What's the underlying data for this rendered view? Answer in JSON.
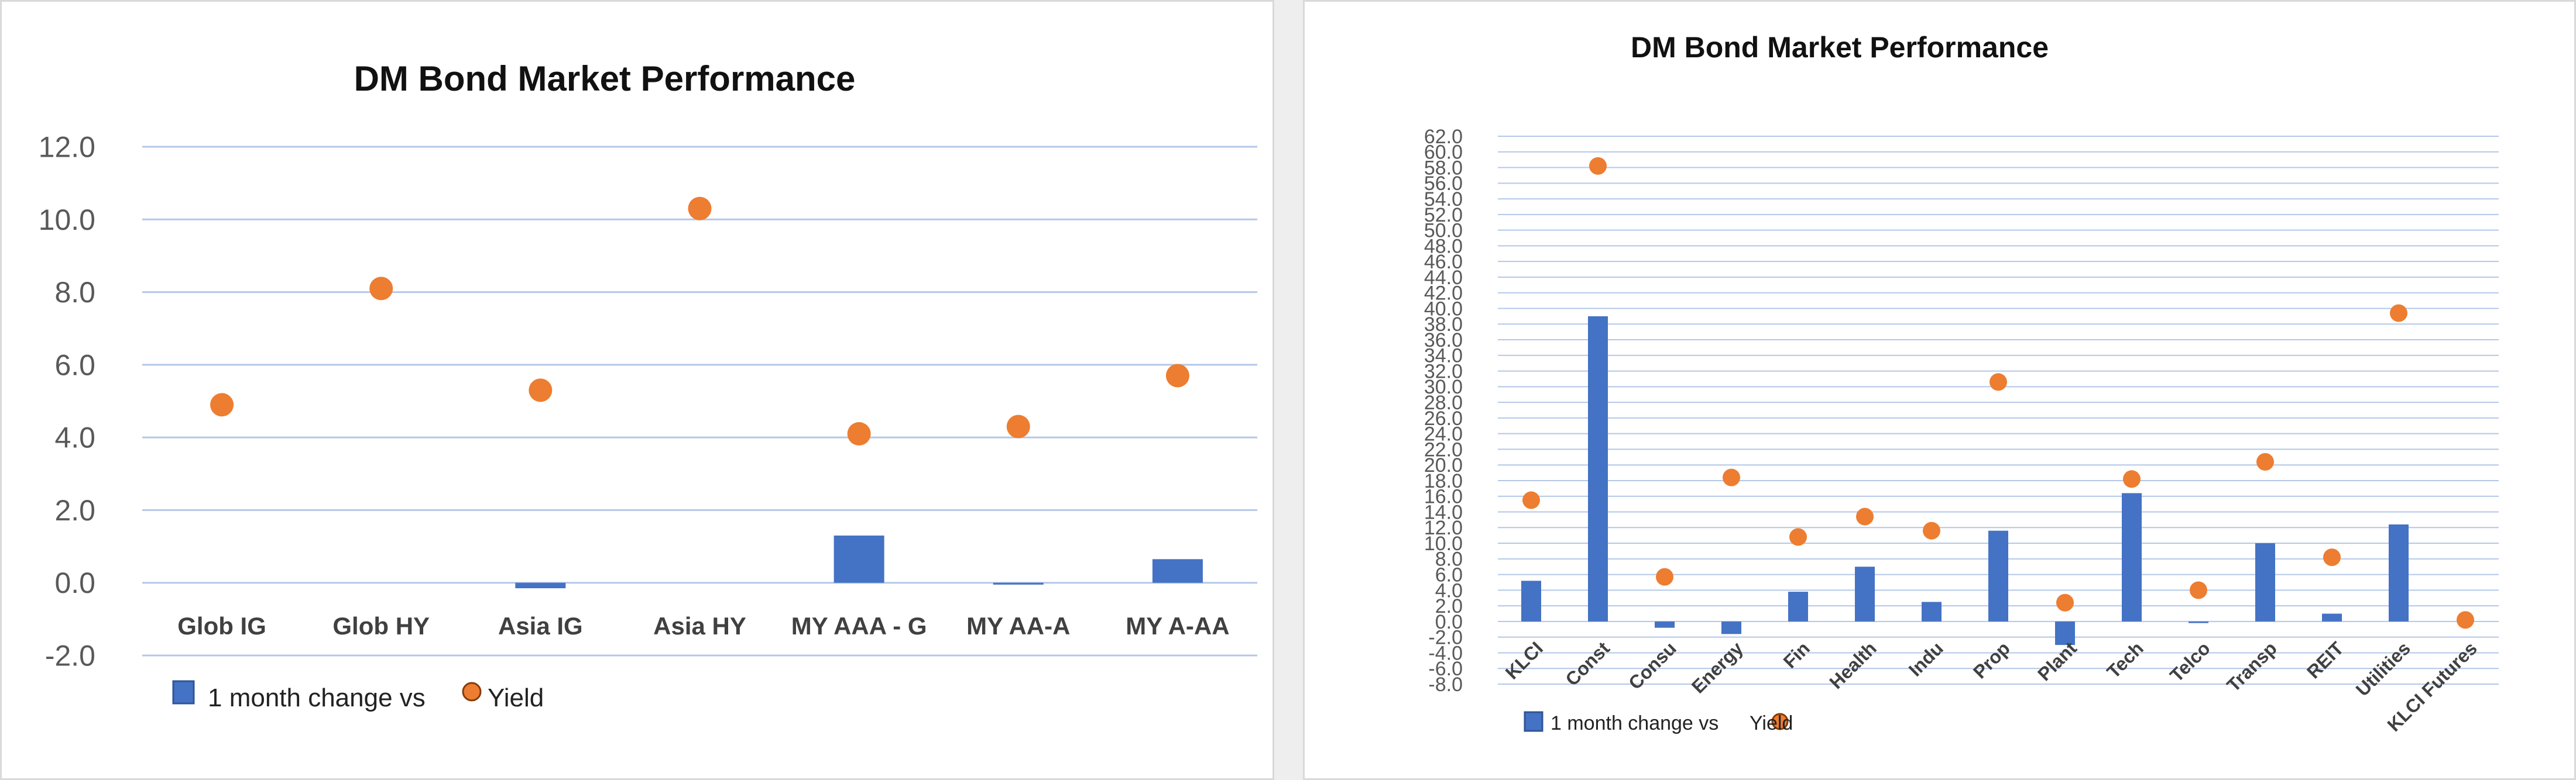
{
  "chart_data": [
    {
      "type": "bar",
      "title": "DM Bond Market Performance",
      "xlabel": "",
      "ylabel": "",
      "categories": [
        "Glob IG",
        "Glob HY",
        "Asia IG",
        "Asia HY",
        "MY AAA - G",
        "MY AA-A",
        "MY A-AA"
      ],
      "series": [
        {
          "name": "1 month change vs",
          "kind": "bar",
          "values": [
            0,
            0,
            -0.15,
            0,
            1.3,
            -0.05,
            0.65
          ],
          "color": "#4472C4"
        },
        {
          "name": "Yield",
          "kind": "scatter",
          "values": [
            4.9,
            8.1,
            5.3,
            10.3,
            4.1,
            4.3,
            5.7
          ],
          "color": "#ED7D31"
        }
      ],
      "ylim": [
        -2.0,
        12.0
      ],
      "yticks": [
        "12.0",
        "10.0",
        "8.0",
        "6.0",
        "4.0",
        "2.0",
        "0.0",
        "-2.0"
      ],
      "ytick_values": [
        12,
        10,
        8,
        6,
        4,
        2,
        0,
        -2
      ],
      "grid": true,
      "legend_position": "bottom-left"
    },
    {
      "type": "bar",
      "title": "DM Bond Market Performance",
      "xlabel": "",
      "ylabel": "",
      "categories": [
        "KLCI",
        "Const",
        "Consu",
        "Energy",
        "Fin",
        "Health",
        "Indu",
        "Prop",
        "Plant",
        "Tech",
        "Telco",
        "Transp",
        "REIT",
        "Utilities",
        "KLCI Futures"
      ],
      "series": [
        {
          "name": "1 month change vs",
          "kind": "bar",
          "values": [
            5.2,
            39.0,
            -0.8,
            -1.6,
            3.8,
            7.0,
            2.5,
            11.6,
            -3.0,
            16.4,
            -0.2,
            10.0,
            1.0,
            12.4,
            0
          ],
          "color": "#4472C4"
        },
        {
          "name": "Yield",
          "kind": "scatter",
          "values": [
            15.5,
            58.2,
            5.7,
            18.4,
            10.8,
            13.4,
            11.6,
            30.6,
            2.4,
            18.2,
            4.0,
            20.4,
            8.2,
            39.4,
            0.2
          ],
          "color": "#ED7D31"
        }
      ],
      "ylim": [
        -8.0,
        62.0
      ],
      "yticks": [
        "62.0",
        "60.0",
        "58.0",
        "56.0",
        "54.0",
        "52.0",
        "50.0",
        "48.0",
        "46.0",
        "44.0",
        "42.0",
        "40.0",
        "38.0",
        "36.0",
        "34.0",
        "32.0",
        "30.0",
        "28.0",
        "26.0",
        "24.0",
        "22.0",
        "20.0",
        "18.0",
        "16.0",
        "14.0",
        "12.0",
        "10.0",
        "8.0",
        "6.0",
        "4.0",
        "2.0",
        "0.0",
        "-2.0",
        "-4.0",
        "-6.0",
        "-8.0"
      ],
      "ytick_values": [
        62,
        60,
        58,
        56,
        54,
        52,
        50,
        48,
        46,
        44,
        42,
        40,
        38,
        36,
        34,
        32,
        30,
        28,
        26,
        24,
        22,
        20,
        18,
        16,
        14,
        12,
        10,
        8,
        6,
        4,
        2,
        0,
        -2,
        -4,
        -6,
        -8
      ],
      "grid": true,
      "legend_position": "bottom-left"
    }
  ]
}
